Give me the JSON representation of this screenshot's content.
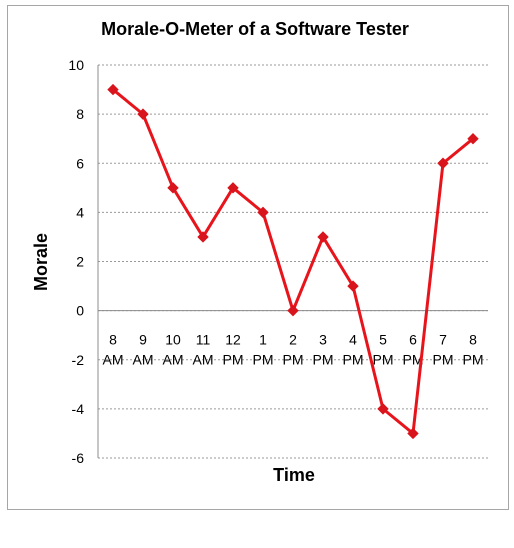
{
  "chart_data": {
    "type": "line",
    "title": "Morale-O-Meter of a Software Tester",
    "xlabel": "Time",
    "ylabel": "Morale",
    "categories": [
      [
        "8",
        "AM"
      ],
      [
        "9",
        "AM"
      ],
      [
        "10",
        "AM"
      ],
      [
        "11",
        "AM"
      ],
      [
        "12",
        "PM"
      ],
      [
        "1",
        "PM"
      ],
      [
        "2",
        "PM"
      ],
      [
        "3",
        "PM"
      ],
      [
        "4",
        "PM"
      ],
      [
        "5",
        "PM"
      ],
      [
        "6",
        "PM"
      ],
      [
        "7",
        "PM"
      ],
      [
        "8",
        "PM"
      ]
    ],
    "series": [
      {
        "values": [
          9,
          8,
          5,
          3,
          5,
          4,
          0,
          3,
          1,
          -4,
          -5,
          6,
          7
        ]
      }
    ],
    "ylim": [
      -6,
      10
    ],
    "yticks": [
      -6,
      -4,
      -2,
      0,
      2,
      4,
      6,
      8,
      10
    ],
    "grid": "horizontal-dashed",
    "legend": "none",
    "colors": {
      "line": "#e8141c",
      "marker": "#d8141c",
      "grid": "#9a9a9a",
      "axis": "#8c8c8c"
    }
  }
}
